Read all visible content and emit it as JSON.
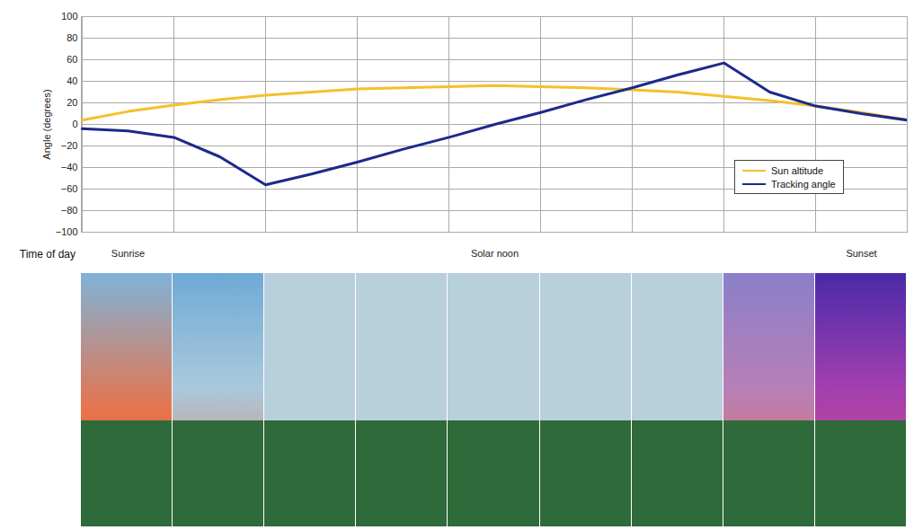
{
  "chart_data": {
    "type": "line",
    "x_label": "Time of day",
    "y_label": "Angle (degrees)",
    "categories": [
      null,
      "Sunrise",
      null,
      null,
      null,
      null,
      null,
      null,
      null,
      "Solar noon",
      null,
      null,
      null,
      null,
      null,
      null,
      null,
      "Sunset",
      null
    ],
    "ylim": [
      -100,
      100
    ],
    "yticks": [
      -100,
      -80,
      -60,
      -40,
      -20,
      0,
      20,
      40,
      60,
      80,
      100
    ],
    "grid": true,
    "legend": "right",
    "series": [
      {
        "name": "Sun altitude",
        "color": "#f5c02c",
        "values": [
          4,
          12,
          18,
          23,
          27,
          30,
          33,
          34,
          35,
          36,
          35,
          34,
          32,
          30,
          26,
          22,
          17,
          11,
          4
        ]
      },
      {
        "name": "Tracking angle",
        "color": "#1c2a8a",
        "values": [
          -4,
          -6,
          -12,
          -30,
          -56,
          -46,
          -35,
          -23,
          -12,
          0,
          11,
          23,
          34,
          46,
          57,
          30,
          17,
          10,
          4
        ]
      }
    ]
  }
}
